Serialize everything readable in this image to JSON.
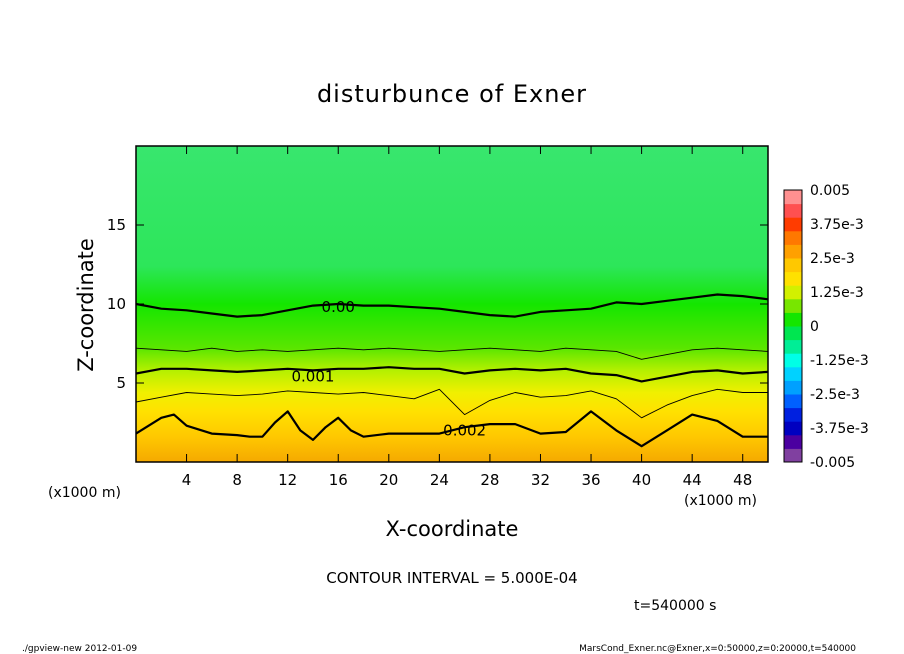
{
  "chart_data": {
    "type": "heatmap",
    "title": "disturbunce of Exner",
    "xlabel": "X-coordinate",
    "ylabel": "Z-coordinate",
    "x_unit_label": "(x1000 m)",
    "y_unit_label": "(x1000 m)",
    "xlim": [
      0,
      50
    ],
    "ylim": [
      0,
      20
    ],
    "x_ticks": [
      4,
      8,
      12,
      16,
      20,
      24,
      28,
      32,
      36,
      40,
      44,
      48
    ],
    "y_ticks": [
      5,
      10,
      15
    ],
    "colorbar": {
      "range": [
        -0.005,
        0.005
      ],
      "labels": [
        "0.005",
        "3.75e-3",
        "2.5e-3",
        "1.25e-3",
        "0",
        "-1.25e-3",
        "-2.5e-3",
        "-3.75e-3",
        "-0.005"
      ],
      "label_values": [
        0.005,
        0.00375,
        0.0025,
        0.00125,
        0,
        -0.00125,
        -0.0025,
        -0.00375,
        -0.005
      ]
    },
    "contour_interval": "CONTOUR INTERVAL = 5.000E-04",
    "contour_labels": [
      {
        "text": "0.00",
        "x": 16,
        "z": 9.8
      },
      {
        "text": "0.001",
        "x": 14,
        "z": 5.4
      },
      {
        "text": "0.002",
        "x": 26,
        "z": 2.0
      }
    ],
    "contours": [
      {
        "value": 0.0,
        "bold": true,
        "x": [
          0,
          2,
          4,
          6,
          8,
          10,
          12,
          14,
          16,
          18,
          20,
          22,
          24,
          26,
          28,
          30,
          32,
          34,
          36,
          38,
          40,
          42,
          44,
          46,
          48,
          50
        ],
        "z": [
          10.0,
          9.7,
          9.6,
          9.4,
          9.2,
          9.3,
          9.6,
          9.9,
          10.0,
          9.9,
          9.9,
          9.8,
          9.7,
          9.5,
          9.3,
          9.2,
          9.5,
          9.6,
          9.7,
          10.1,
          10.0,
          10.2,
          10.4,
          10.6,
          10.5,
          10.3
        ]
      },
      {
        "value": 0.0005,
        "bold": false,
        "x": [
          0,
          2,
          4,
          6,
          8,
          10,
          12,
          14,
          16,
          18,
          20,
          22,
          24,
          26,
          28,
          30,
          32,
          34,
          36,
          38,
          40,
          42,
          44,
          46,
          48,
          50
        ],
        "z": [
          7.2,
          7.1,
          7.0,
          7.2,
          7.0,
          7.1,
          7.0,
          7.1,
          7.2,
          7.1,
          7.2,
          7.1,
          7.0,
          7.1,
          7.2,
          7.1,
          7.0,
          7.2,
          7.1,
          7.0,
          6.5,
          6.8,
          7.1,
          7.2,
          7.1,
          7.0
        ]
      },
      {
        "value": 0.001,
        "bold": true,
        "x": [
          0,
          2,
          4,
          6,
          8,
          10,
          12,
          14,
          16,
          18,
          20,
          22,
          24,
          26,
          28,
          30,
          32,
          34,
          36,
          38,
          40,
          42,
          44,
          46,
          48,
          50
        ],
        "z": [
          5.6,
          5.9,
          5.9,
          5.8,
          5.7,
          5.8,
          5.9,
          5.8,
          5.9,
          5.9,
          6.0,
          5.9,
          5.9,
          5.6,
          5.8,
          5.9,
          5.8,
          5.9,
          5.6,
          5.5,
          5.1,
          5.4,
          5.7,
          5.8,
          5.6,
          5.7
        ]
      },
      {
        "value": 0.0015,
        "bold": false,
        "x": [
          0,
          2,
          4,
          6,
          8,
          10,
          12,
          14,
          16,
          18,
          20,
          22,
          24,
          26,
          28,
          30,
          32,
          34,
          36,
          38,
          40,
          42,
          44,
          46,
          48,
          50
        ],
        "z": [
          3.8,
          4.1,
          4.4,
          4.3,
          4.2,
          4.3,
          4.5,
          4.4,
          4.3,
          4.4,
          4.2,
          4.0,
          4.6,
          3.0,
          3.9,
          4.4,
          4.1,
          4.2,
          4.5,
          4.0,
          2.8,
          3.6,
          4.2,
          4.6,
          4.4,
          4.4
        ]
      },
      {
        "value": 0.002,
        "bold": true,
        "x": [
          0,
          2,
          3,
          4,
          6,
          8,
          9,
          10,
          11,
          12,
          13,
          14,
          15,
          16,
          17,
          18,
          20,
          22,
          24,
          26,
          28,
          30,
          32,
          34,
          36,
          38,
          40,
          42,
          44,
          46,
          48,
          50
        ],
        "z": [
          1.8,
          2.8,
          3.0,
          2.3,
          1.8,
          1.7,
          1.6,
          1.6,
          2.5,
          3.2,
          2.0,
          1.4,
          2.2,
          2.8,
          2.0,
          1.6,
          1.8,
          1.8,
          1.8,
          2.2,
          2.4,
          2.4,
          1.8,
          1.9,
          3.2,
          2.0,
          1.0,
          2.0,
          3.0,
          2.6,
          1.6,
          1.6
        ]
      }
    ]
  },
  "notes": {
    "time": "t=540000 s",
    "footer_left": "./gpview-new   2012-01-09",
    "footer_right": "MarsCond_Exner.nc@Exner,x=0:50000,z=0:20000,t=540000"
  }
}
